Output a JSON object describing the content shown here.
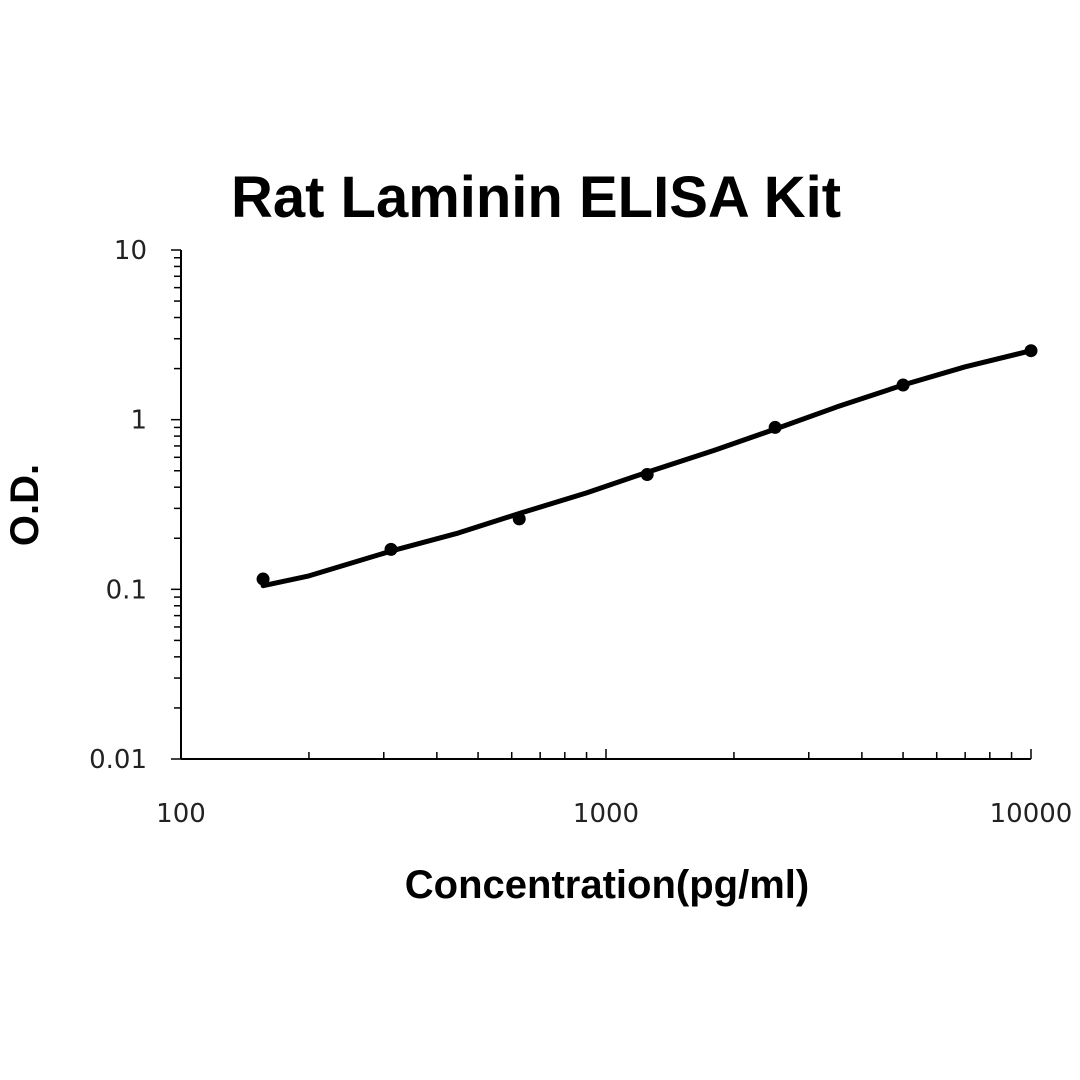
{
  "chart_data": {
    "type": "scatter",
    "title": "Rat Laminin ELISA Kit",
    "xlabel": "Concentration(pg/ml)",
    "ylabel": "O.D.",
    "x_scale": "log",
    "y_scale": "log",
    "xlim": [
      100,
      10000
    ],
    "ylim": [
      0.01,
      10
    ],
    "x_ticks": [
      "100",
      "1000",
      "10000"
    ],
    "y_ticks": [
      "0.01",
      "0.1",
      "1",
      "10"
    ],
    "grid": false,
    "legend": "none",
    "series": [
      {
        "x": [
          156,
          312,
          625,
          1250,
          2500,
          5000,
          10000
        ],
        "y": [
          0.115,
          0.172,
          0.26,
          0.475,
          0.9,
          1.6,
          2.55
        ]
      }
    ],
    "fit_curve": {
      "x": [
        156,
        200,
        312,
        450,
        625,
        900,
        1250,
        1800,
        2500,
        3500,
        5000,
        7000,
        10000
      ],
      "y": [
        0.105,
        0.12,
        0.168,
        0.215,
        0.28,
        0.37,
        0.49,
        0.66,
        0.88,
        1.19,
        1.6,
        2.05,
        2.55
      ]
    }
  }
}
